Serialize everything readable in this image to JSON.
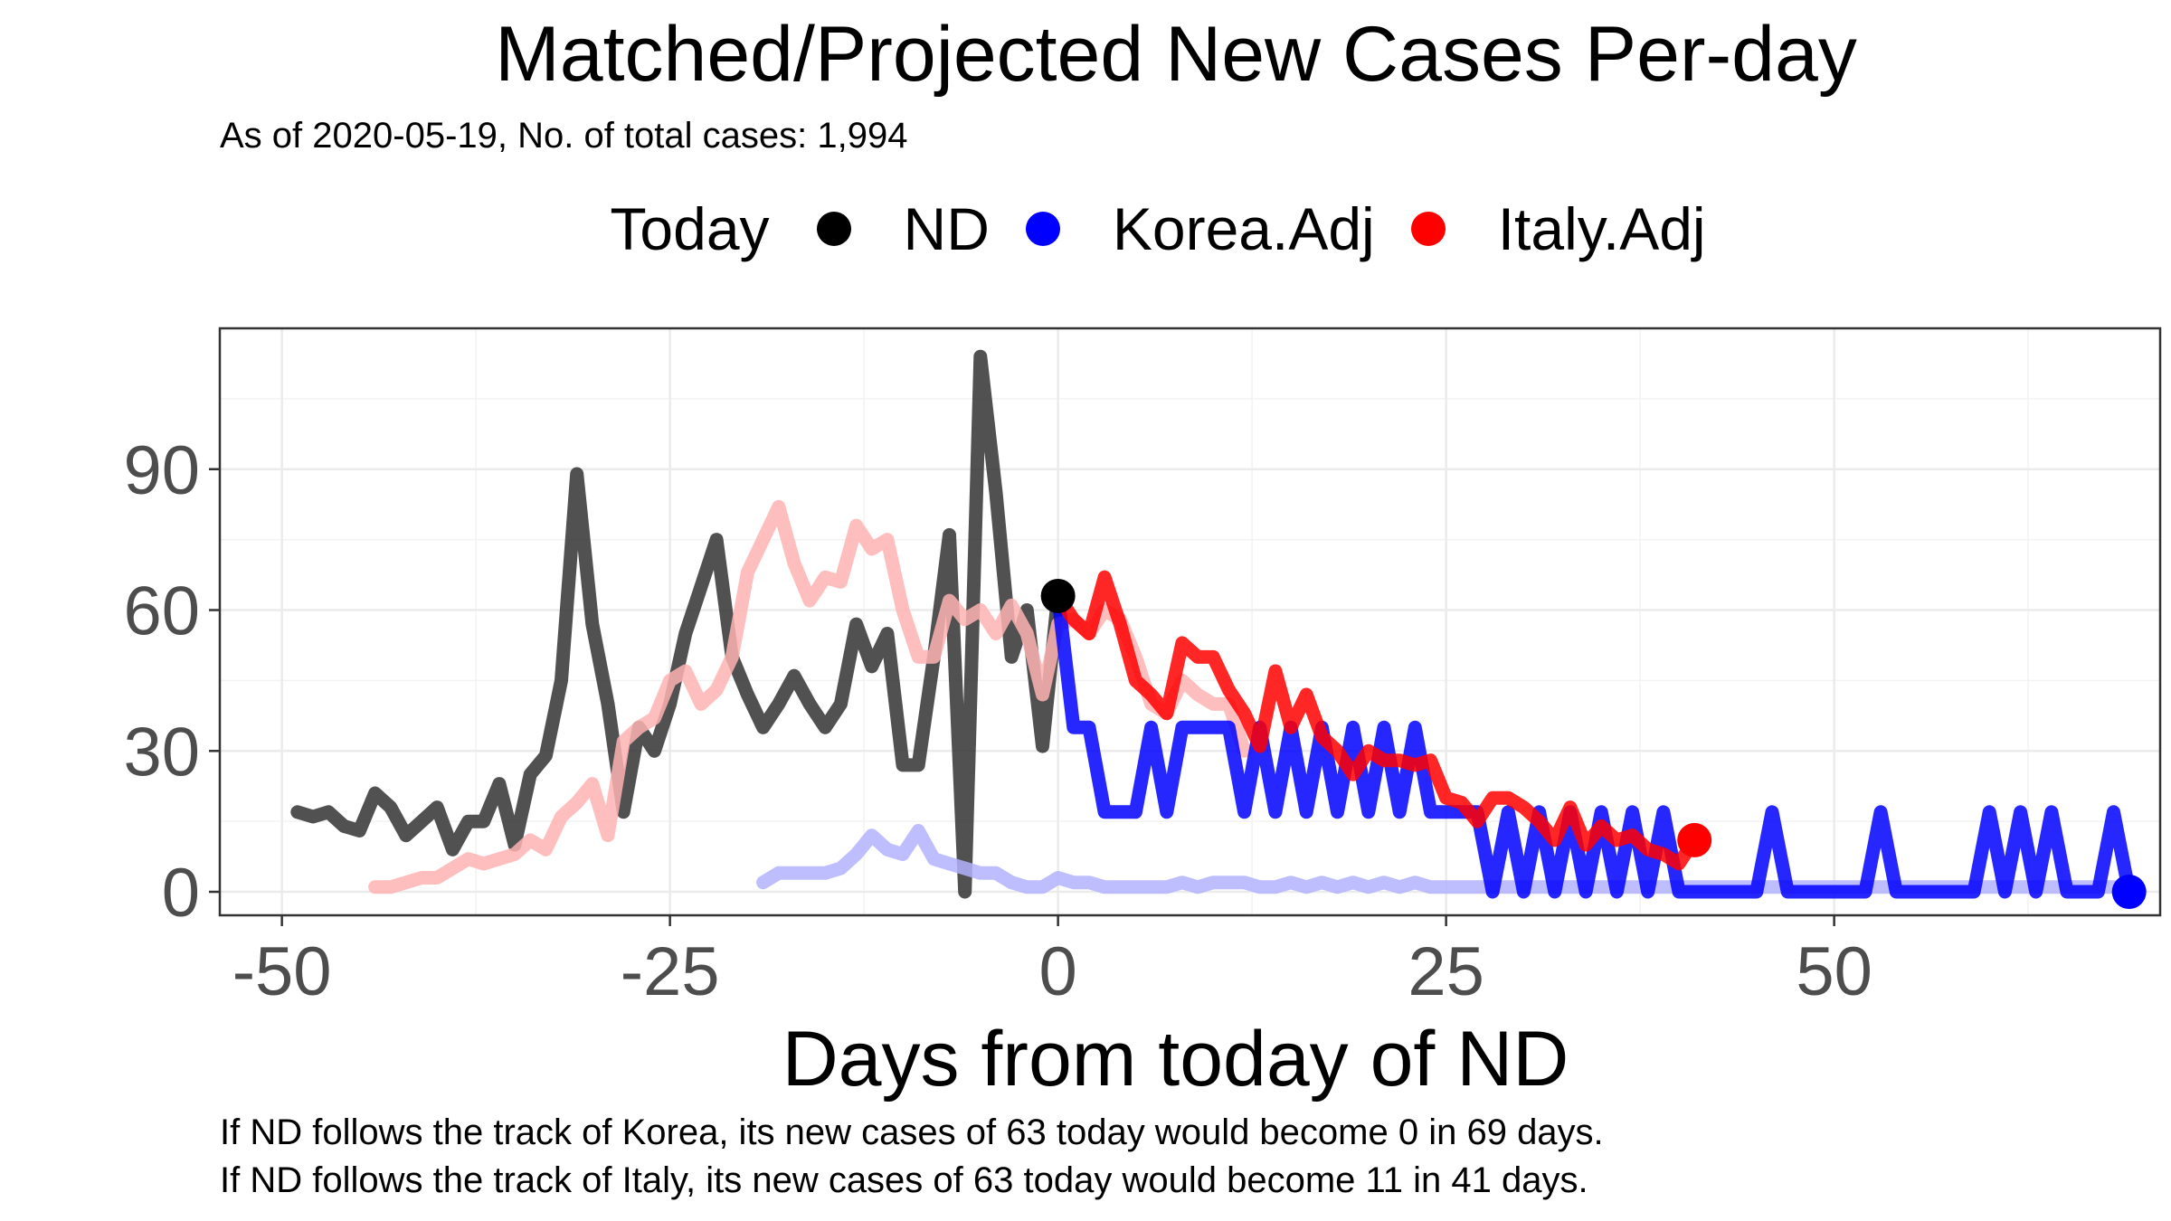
{
  "chart_data": {
    "type": "line",
    "title": "Matched/Projected New Cases Per-day",
    "subtitle": "As of 2020-05-19, No. of total cases: 1,994",
    "xlabel": "Days from today of ND",
    "ylabel": "",
    "xlim": [
      -54,
      71
    ],
    "ylim": [
      -5,
      120
    ],
    "x_ticks": [
      -50,
      -25,
      0,
      25,
      50
    ],
    "x_tick_labels": [
      "-50",
      "-25",
      "0",
      "25",
      "50"
    ],
    "y_ticks": [
      0,
      30,
      60,
      90
    ],
    "y_tick_labels": [
      "0",
      "30",
      "60",
      "90"
    ],
    "grid": true,
    "legend": {
      "title": "Today",
      "position": "top",
      "entries": [
        {
          "label": "ND",
          "color": "#000000"
        },
        {
          "label": "Korea.Adj",
          "color": "#0000ff"
        },
        {
          "label": "Italy.Adj",
          "color": "#ff0000"
        }
      ]
    },
    "series": [
      {
        "name": "ND",
        "color": "#333333",
        "x": [
          -49,
          -48,
          -47,
          -46,
          -45,
          -44,
          -43,
          -42,
          -41,
          -40,
          -39,
          -38,
          -37,
          -36,
          -35,
          -34,
          -33,
          -32,
          -31,
          -30,
          -29,
          -28,
          -27,
          -26,
          -25,
          -24,
          -23,
          -22,
          -21,
          -20,
          -19,
          -18,
          -17,
          -16,
          -15,
          -14,
          -13,
          -12,
          -11,
          -10,
          -9,
          -8,
          -7,
          -6,
          -5,
          -4,
          -3,
          -2,
          -1,
          0
        ],
        "values": [
          17,
          16,
          17,
          14,
          13,
          21,
          18,
          12,
          15,
          18,
          9,
          15,
          15,
          23,
          10,
          25,
          29,
          45,
          89,
          57,
          40,
          17,
          35,
          30,
          40,
          55,
          65,
          75,
          50,
          42,
          35,
          40,
          46,
          40,
          35,
          40,
          57,
          48,
          55,
          27,
          27,
          50,
          76,
          0,
          114,
          85,
          50,
          60,
          31,
          63
        ]
      },
      {
        "name": "Korea.Adj (matched)",
        "color": "#b3b3ff",
        "x": [
          -19,
          -18,
          -17,
          -16,
          -15,
          -14,
          -13,
          -12,
          -11,
          -10,
          -9,
          -8,
          -7,
          -6,
          -5,
          -4,
          -3,
          -2,
          -1,
          0,
          1,
          2,
          3,
          4,
          5,
          6,
          7,
          8,
          9,
          10,
          11,
          12,
          13,
          14,
          15,
          16,
          17,
          18,
          19,
          20,
          21,
          22,
          23,
          24,
          25,
          30,
          35,
          40,
          45,
          50,
          55,
          60,
          65,
          69
        ],
        "values": [
          2,
          4,
          4,
          4,
          4,
          5,
          8,
          12,
          9,
          8,
          13,
          7,
          6,
          5,
          4,
          4,
          2,
          1,
          1,
          3,
          2,
          2,
          1,
          1,
          1,
          1,
          1,
          2,
          1,
          2,
          2,
          2,
          1,
          1,
          2,
          1,
          2,
          1,
          2,
          1,
          2,
          1,
          2,
          1,
          1,
          1,
          1,
          1,
          1,
          1,
          1,
          1,
          1,
          1
        ]
      },
      {
        "name": "Italy.Adj (matched)",
        "color": "#ffb3b3",
        "x": [
          -44,
          -43,
          -42,
          -41,
          -40,
          -39,
          -38,
          -37,
          -36,
          -35,
          -34,
          -33,
          -32,
          -31,
          -30,
          -29,
          -28,
          -27,
          -26,
          -25,
          -24,
          -23,
          -22,
          -21,
          -20,
          -19,
          -18,
          -17,
          -16,
          -15,
          -14,
          -13,
          -12,
          -11,
          -10,
          -9,
          -8,
          -7,
          -6,
          -5,
          -4,
          -3,
          -2,
          -1,
          0,
          1,
          2,
          3,
          4,
          5,
          6,
          7,
          8,
          9,
          10,
          11,
          12
        ],
        "values": [
          1,
          1,
          2,
          3,
          3,
          5,
          7,
          6,
          7,
          8,
          11,
          9,
          16,
          19,
          23,
          12,
          32,
          35,
          37,
          45,
          47,
          40,
          43,
          50,
          68,
          75,
          82,
          70,
          62,
          67,
          66,
          78,
          73,
          75,
          60,
          50,
          50,
          62,
          58,
          60,
          55,
          61,
          55,
          42,
          57,
          58,
          55,
          60,
          58,
          50,
          40,
          38,
          45,
          42,
          40,
          40,
          30
        ]
      },
      {
        "name": "Korea.Adj",
        "color": "#0000ff",
        "x": [
          0,
          1,
          2,
          3,
          4,
          5,
          6,
          7,
          8,
          9,
          10,
          11,
          12,
          13,
          14,
          15,
          16,
          17,
          18,
          19,
          20,
          21,
          22,
          23,
          24,
          25,
          26,
          27,
          28,
          29,
          30,
          31,
          32,
          33,
          34,
          35,
          36,
          37,
          38,
          39,
          40,
          41,
          42,
          43,
          44,
          45,
          46,
          47,
          48,
          49,
          50,
          51,
          52,
          53,
          54,
          55,
          56,
          57,
          58,
          59,
          60,
          61,
          62,
          63,
          64,
          65,
          66,
          67,
          68,
          69
        ],
        "values": [
          63,
          35,
          35,
          17,
          17,
          17,
          35,
          17,
          35,
          35,
          35,
          35,
          17,
          35,
          17,
          35,
          17,
          35,
          17,
          35,
          17,
          35,
          17,
          35,
          17,
          17,
          17,
          17,
          0,
          17,
          0,
          17,
          0,
          17,
          0,
          17,
          0,
          17,
          0,
          17,
          0,
          0,
          0,
          0,
          0,
          0,
          17,
          0,
          0,
          0,
          0,
          0,
          0,
          17,
          0,
          0,
          0,
          0,
          0,
          0,
          17,
          0,
          17,
          0,
          17,
          0,
          0,
          0,
          17,
          0
        ]
      },
      {
        "name": "Italy.Adj",
        "color": "#ff0000",
        "x": [
          0,
          1,
          2,
          3,
          4,
          5,
          6,
          7,
          8,
          9,
          10,
          11,
          12,
          13,
          14,
          15,
          16,
          17,
          18,
          19,
          20,
          21,
          22,
          23,
          24,
          25,
          26,
          27,
          28,
          29,
          30,
          31,
          32,
          33,
          34,
          35,
          36,
          37,
          38,
          39,
          40,
          41
        ],
        "values": [
          63,
          58,
          55,
          67,
          57,
          45,
          42,
          38,
          53,
          50,
          50,
          43,
          38,
          31,
          47,
          35,
          42,
          33,
          30,
          25,
          30,
          28,
          28,
          27,
          28,
          20,
          19,
          15,
          20,
          20,
          18,
          15,
          11,
          18,
          10,
          14,
          11,
          12,
          9,
          8,
          6,
          11
        ]
      }
    ],
    "today_points": [
      {
        "series": "ND",
        "x": 0,
        "y": 63,
        "color": "#000000"
      },
      {
        "series": "Korea.Adj",
        "x": 69,
        "y": 0,
        "color": "#0000ff"
      },
      {
        "series": "Italy.Adj",
        "x": 41,
        "y": 11,
        "color": "#ff0000"
      }
    ],
    "captions": [
      "If ND follows the track of Korea, its new cases of 63 today would become 0 in 69 days.",
      "If ND follows the track of Italy, its new cases of 63 today would become 11 in 41 days."
    ]
  }
}
